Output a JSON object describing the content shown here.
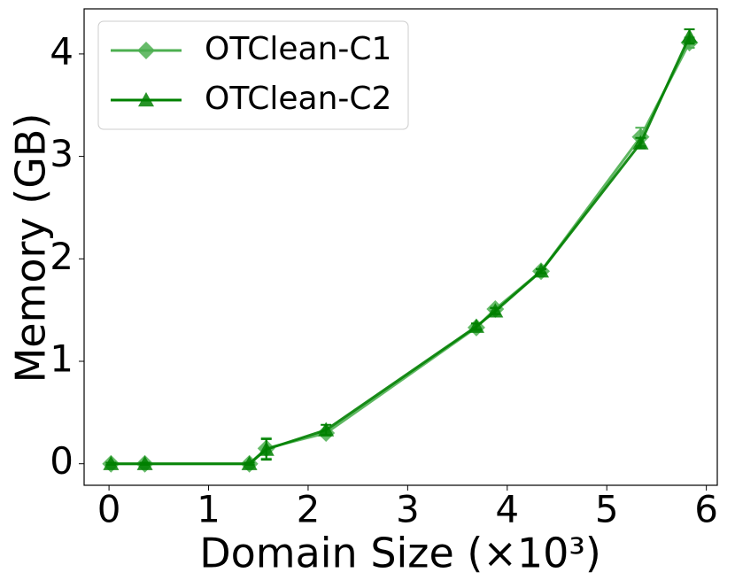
{
  "chart_data": {
    "type": "line",
    "x_label": "Domain Size (×10³)",
    "y_label": "Memory (GB)",
    "xlim": [
      -0.25,
      6.11
    ],
    "xticks": [
      0,
      1,
      2,
      3,
      4,
      5,
      6
    ],
    "ylim": [
      -0.21,
      4.44
    ],
    "yticks": [
      0,
      1,
      2,
      3,
      4
    ],
    "legend": "upper left",
    "series": [
      {
        "name": "OTClean-C1",
        "color": "#4caf50",
        "marker": "diamond",
        "x": [
          0.02,
          0.36,
          1.41,
          1.58,
          2.18,
          3.69,
          3.88,
          4.34,
          5.34,
          5.83
        ],
        "values": [
          0,
          0,
          0,
          0.15,
          0.3,
          1.33,
          1.51,
          1.88,
          3.19,
          4.11
        ],
        "errors": [
          0.01,
          0.01,
          0.01,
          0.1,
          0.03,
          0.03,
          0.02,
          0.02,
          0.09,
          0.05
        ]
      },
      {
        "name": "OTClean-C2",
        "color": "#008000",
        "marker": "triangle",
        "x": [
          0.02,
          0.36,
          1.41,
          1.58,
          2.18,
          3.69,
          3.88,
          4.34,
          5.34,
          5.83
        ],
        "values": [
          0,
          0,
          0,
          0.14,
          0.33,
          1.34,
          1.49,
          1.88,
          3.13,
          4.17
        ],
        "errors": [
          0.01,
          0.01,
          0.01,
          0.1,
          0.05,
          0.03,
          0.03,
          0.02,
          0.05,
          0.07
        ]
      }
    ]
  }
}
